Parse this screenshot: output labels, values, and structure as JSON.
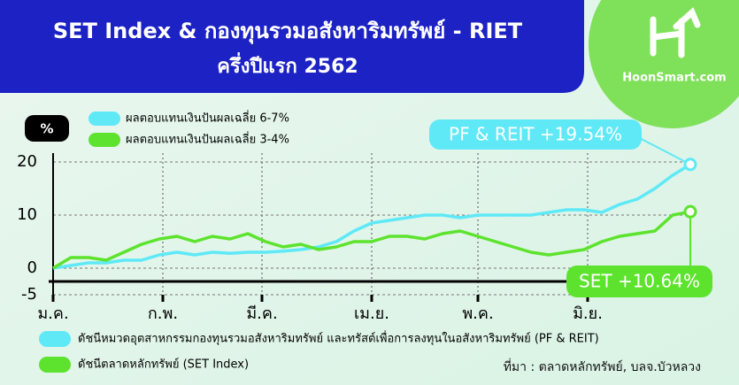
{
  "chart_data": {
    "type": "line",
    "title": "SET Index & กองทุนรวมอสังหาริมทรัพย์ - RIET",
    "subtitle": "ครึ่งปีแรก 2562",
    "logo": "HoonSmart.com",
    "y_unit": "%",
    "source": "ที่มา : ตลาดหลักทรัพย์, บลจ.บัวหลวง",
    "x": [
      0,
      5,
      10,
      15,
      20,
      25,
      30,
      35,
      40,
      45,
      50,
      55,
      60,
      65,
      70,
      75,
      80,
      85,
      90,
      95,
      100,
      105,
      110,
      115,
      120,
      125,
      130,
      135,
      140,
      145,
      150,
      155,
      160,
      165,
      170,
      175,
      180
    ],
    "xlim": [
      0,
      180
    ],
    "xticks": [
      {
        "value": 0,
        "label": "ม.ค."
      },
      {
        "value": 31,
        "label": "ก.พ."
      },
      {
        "value": 59,
        "label": "มี.ค."
      },
      {
        "value": 90,
        "label": "เม.ย."
      },
      {
        "value": 120,
        "label": "พ.ค."
      },
      {
        "value": 151,
        "label": "มิ.ย."
      }
    ],
    "ylim": [
      -5,
      25
    ],
    "yticks": [
      -5,
      0,
      10,
      20
    ],
    "grid": true,
    "series": [
      {
        "name": "ดัชนีหมวดอุตสาหกรรมกองทุนรวมอสังหาริมทรัพย์ และทรัสต์เพื่อการลงทุนในอสังหาริมทรัพย์ (PF & REIT)",
        "yield_label": "ผลตอบแทนเงินปันผลเฉลี่ย 6-7%",
        "end_label": "PF & REIT +19.54%",
        "color": "#5fe9f7",
        "values": [
          0,
          0.5,
          1,
          1,
          1.5,
          1.5,
          2.5,
          3,
          2.5,
          3,
          2.8,
          3,
          3,
          3.2,
          3.5,
          4,
          5,
          7,
          8.5,
          9,
          9.5,
          10,
          10,
          9.5,
          10,
          10,
          10,
          10,
          10.5,
          11,
          11,
          10.5,
          12,
          13,
          15,
          17.5,
          19.54
        ]
      },
      {
        "name": "ดัชนีตลาดหลักทรัพย์ (SET Index)",
        "yield_label": "ผลตอบแทนเงินปันผลเฉลี่ย 3-4%",
        "end_label": "SET +10.64%",
        "color": "#5de32e",
        "values": [
          0,
          2,
          2,
          1.5,
          3,
          4.5,
          5.5,
          6,
          5,
          6,
          5.5,
          6.5,
          5,
          4,
          4.5,
          3.5,
          4,
          5,
          5,
          6,
          6,
          5.5,
          6.5,
          7,
          6,
          5,
          4,
          3,
          2.5,
          3,
          3.5,
          5,
          6,
          6.5,
          7,
          10,
          10.64
        ]
      }
    ]
  }
}
